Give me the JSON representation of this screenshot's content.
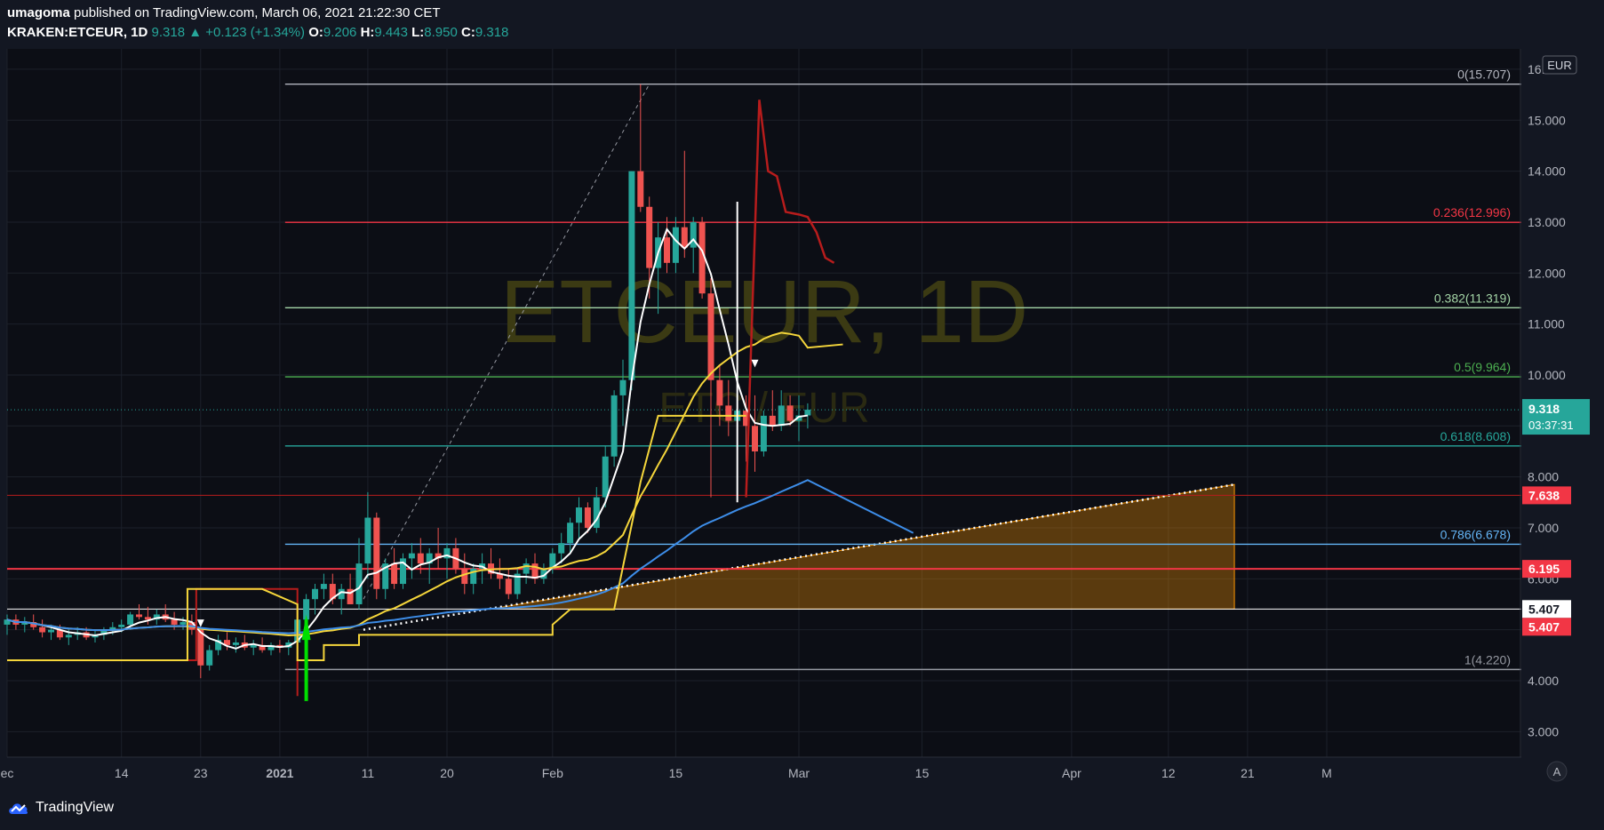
{
  "header": {
    "author": "umagoma",
    "published": "published on TradingView.com, March 06, 2021 21:22:30 CET",
    "symbol": "KRAKEN:ETCEUR, 1D",
    "last": "9.318",
    "change": "+0.123 (+1.34%)",
    "o_label": "O:",
    "o": "9.206",
    "h_label": "H:",
    "h": "9.443",
    "l_label": "L:",
    "l": "8.950",
    "c_label": "C:",
    "c": "9.318"
  },
  "watermark": {
    "main": "ETCEUR, 1D",
    "sub": "ETC / EUR"
  },
  "currency": "EUR",
  "price_tag": {
    "value": "9.318",
    "countdown": "03:37:31"
  },
  "level_tags": [
    {
      "text": "7.638",
      "color": "#f23645",
      "price": 7.638
    },
    {
      "text": "6.195",
      "color": "#f23645",
      "price": 6.195
    },
    {
      "text": "5.407",
      "color": "#ffffff",
      "price": 5.407
    },
    {
      "text": "5.407",
      "color": "#f23645",
      "price": 5.407
    }
  ],
  "fib_levels": [
    {
      "text": "0(15.707)",
      "price": 15.707,
      "color": "#b2b5be"
    },
    {
      "text": "0.236(12.996)",
      "price": 12.996,
      "color": "#f23645"
    },
    {
      "text": "0.382(11.319)",
      "price": 11.319,
      "color": "#a5d6a7"
    },
    {
      "text": "0.5(9.964)",
      "price": 9.964,
      "color": "#4caf50"
    },
    {
      "text": "0.618(8.608)",
      "price": 8.608,
      "color": "#26a69a"
    },
    {
      "text": "0.786(6.678)",
      "price": 6.678,
      "color": "#64b5f6"
    },
    {
      "text": "1(4.220)",
      "price": 4.22,
      "color": "#9598a1"
    }
  ],
  "footer": {
    "brand": "TradingView"
  },
  "chart_data": {
    "type": "candlestick",
    "y_axis": {
      "min": 2.5,
      "max": 16.4,
      "ticks": [
        "16.000",
        "15.000",
        "14.000",
        "13.000",
        "12.000",
        "11.000",
        "10.000",
        "9.000",
        "8.000",
        "7.000",
        "6.000",
        "5.000",
        "4.000",
        "3.000"
      ]
    },
    "x_ticks": [
      {
        "label": "ec",
        "day": 0
      },
      {
        "label": "14",
        "day": 13
      },
      {
        "label": "23",
        "day": 22
      },
      {
        "label": "2021",
        "day": 31
      },
      {
        "label": "11",
        "day": 41
      },
      {
        "label": "20",
        "day": 50
      },
      {
        "label": "Feb",
        "day": 62
      },
      {
        "label": "15",
        "day": 76
      },
      {
        "label": "Mar",
        "day": 90
      },
      {
        "label": "15",
        "day": 104
      },
      {
        "label": "Apr",
        "day": 121
      },
      {
        "label": "12",
        "day": 132
      },
      {
        "label": "21",
        "day": 141
      },
      {
        "label": "M",
        "day": 150
      }
    ],
    "candles": [
      [
        5.1,
        5.3,
        4.9,
        5.2
      ],
      [
        5.2,
        5.3,
        5.0,
        5.1
      ],
      [
        5.1,
        5.25,
        4.95,
        5.15
      ],
      [
        5.15,
        5.3,
        5.0,
        5.05
      ],
      [
        5.05,
        5.2,
        4.85,
        4.95
      ],
      [
        4.95,
        5.1,
        4.8,
        5.0
      ],
      [
        5.0,
        5.1,
        4.8,
        4.85
      ],
      [
        4.85,
        5.0,
        4.7,
        4.9
      ],
      [
        4.9,
        5.05,
        4.8,
        4.95
      ],
      [
        4.95,
        5.05,
        4.8,
        4.85
      ],
      [
        4.85,
        5.0,
        4.75,
        4.9
      ],
      [
        4.9,
        5.05,
        4.8,
        5.0
      ],
      [
        5.0,
        5.15,
        4.9,
        5.05
      ],
      [
        5.05,
        5.2,
        4.95,
        5.1
      ],
      [
        5.1,
        5.35,
        5.0,
        5.3
      ],
      [
        5.3,
        5.5,
        5.2,
        5.25
      ],
      [
        5.25,
        5.45,
        5.1,
        5.2
      ],
      [
        5.2,
        5.4,
        5.1,
        5.3
      ],
      [
        5.3,
        5.5,
        5.15,
        5.2
      ],
      [
        5.2,
        5.35,
        5.0,
        5.1
      ],
      [
        5.1,
        5.25,
        5.0,
        5.15
      ],
      [
        5.15,
        5.3,
        4.9,
        5.0
      ],
      [
        5.0,
        5.05,
        4.05,
        4.3
      ],
      [
        4.3,
        4.7,
        4.2,
        4.6
      ],
      [
        4.6,
        4.9,
        4.5,
        4.8
      ],
      [
        4.8,
        4.95,
        4.6,
        4.7
      ],
      [
        4.7,
        4.85,
        4.55,
        4.75
      ],
      [
        4.75,
        4.9,
        4.6,
        4.65
      ],
      [
        4.65,
        4.8,
        4.5,
        4.7
      ],
      [
        4.7,
        4.85,
        4.55,
        4.6
      ],
      [
        4.6,
        4.75,
        4.5,
        4.7
      ],
      [
        4.7,
        4.8,
        4.55,
        4.65
      ],
      [
        4.65,
        4.8,
        4.5,
        4.75
      ],
      [
        4.75,
        5.3,
        4.6,
        5.2
      ],
      [
        5.2,
        5.7,
        5.0,
        5.6
      ],
      [
        5.6,
        5.9,
        5.3,
        5.8
      ],
      [
        5.8,
        6.1,
        5.6,
        5.9
      ],
      [
        5.9,
        6.1,
        5.5,
        5.6
      ],
      [
        5.6,
        5.9,
        5.3,
        5.8
      ],
      [
        5.8,
        6.1,
        5.5,
        5.5
      ],
      [
        5.5,
        6.8,
        5.4,
        6.3
      ],
      [
        6.3,
        7.7,
        6.0,
        7.2
      ],
      [
        7.2,
        7.3,
        5.6,
        5.8
      ],
      [
        5.8,
        6.4,
        5.6,
        6.3
      ],
      [
        6.3,
        6.6,
        5.8,
        5.9
      ],
      [
        5.9,
        6.5,
        5.8,
        6.4
      ],
      [
        6.4,
        6.7,
        6.0,
        6.5
      ],
      [
        6.5,
        6.8,
        6.1,
        6.3
      ],
      [
        6.3,
        6.6,
        5.9,
        6.5
      ],
      [
        6.5,
        7.0,
        6.2,
        6.4
      ],
      [
        6.4,
        6.7,
        6.0,
        6.6
      ],
      [
        6.6,
        6.8,
        6.1,
        6.2
      ],
      [
        6.2,
        6.5,
        5.7,
        5.9
      ],
      [
        5.9,
        6.3,
        5.7,
        6.2
      ],
      [
        6.2,
        6.5,
        5.9,
        6.3
      ],
      [
        6.3,
        6.6,
        6.0,
        6.1
      ],
      [
        6.1,
        6.4,
        5.8,
        6.0
      ],
      [
        6.0,
        6.2,
        5.6,
        5.7
      ],
      [
        5.7,
        6.2,
        5.6,
        6.1
      ],
      [
        6.1,
        6.4,
        5.9,
        6.3
      ],
      [
        6.3,
        6.5,
        5.9,
        6.0
      ],
      [
        6.0,
        6.3,
        5.9,
        6.2
      ],
      [
        6.2,
        6.6,
        6.1,
        6.5
      ],
      [
        6.5,
        6.9,
        6.3,
        6.7
      ],
      [
        6.7,
        7.2,
        6.5,
        7.1
      ],
      [
        7.1,
        7.6,
        6.8,
        7.4
      ],
      [
        7.4,
        7.5,
        6.9,
        7.0
      ],
      [
        7.0,
        7.8,
        6.9,
        7.6
      ],
      [
        7.6,
        8.6,
        7.4,
        8.4
      ],
      [
        8.4,
        9.7,
        8.2,
        9.6
      ],
      [
        9.6,
        10.3,
        9.0,
        9.9
      ],
      [
        9.9,
        14.0,
        9.7,
        14.0
      ],
      [
        14.0,
        15.707,
        13.2,
        13.3
      ],
      [
        13.3,
        13.5,
        11.5,
        12.1
      ],
      [
        12.1,
        13.0,
        11.2,
        12.7
      ],
      [
        12.7,
        13.1,
        12.0,
        12.2
      ],
      [
        12.2,
        13.1,
        12.0,
        12.9
      ],
      [
        12.9,
        14.4,
        12.3,
        12.5
      ],
      [
        12.5,
        13.1,
        12.0,
        13.0
      ],
      [
        13.0,
        13.1,
        11.5,
        11.6
      ],
      [
        11.6,
        11.9,
        7.6,
        9.9
      ],
      [
        9.9,
        10.2,
        9.0,
        9.4
      ],
      [
        9.4,
        9.9,
        8.8,
        9.1
      ],
      [
        9.1,
        9.5,
        8.3,
        9.3
      ],
      [
        9.3,
        9.6,
        8.3,
        9.0
      ],
      [
        9.0,
        9.6,
        8.1,
        8.5
      ],
      [
        8.5,
        9.3,
        8.4,
        9.2
      ],
      [
        9.2,
        9.7,
        8.9,
        9.0
      ],
      [
        9.0,
        9.7,
        8.9,
        9.4
      ],
      [
        9.4,
        9.6,
        9.0,
        9.1
      ],
      [
        9.1,
        9.6,
        8.7,
        9.206
      ],
      [
        9.206,
        9.443,
        8.95,
        9.318
      ]
    ]
  }
}
